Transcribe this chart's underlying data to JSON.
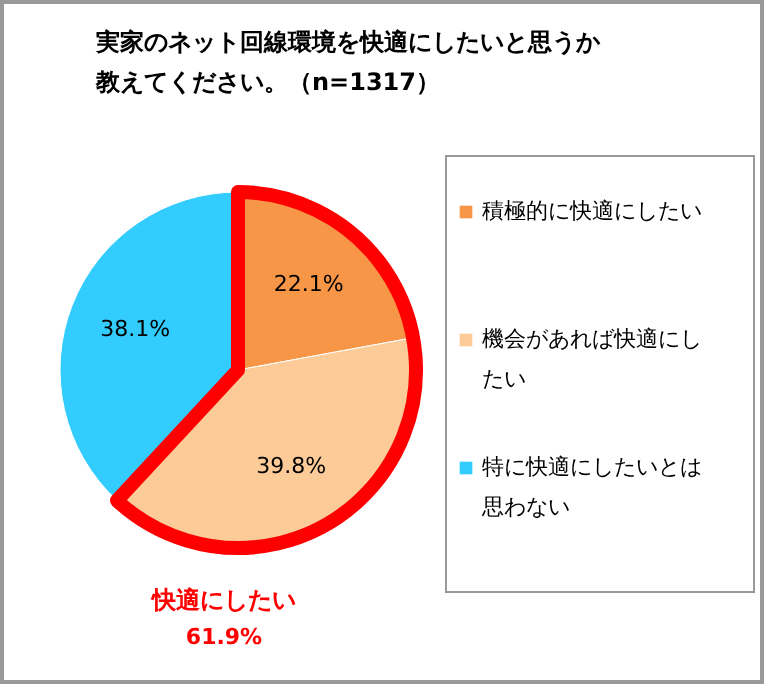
{
  "chart_data": {
    "type": "pie",
    "title": "実家のネット回線環境を快適にしたいと思うか教えてください。（n=1317）",
    "categories": [
      "積極的に快適にしたい",
      "機会があれば快適にしたい",
      "特に快適にしたいとは思わない"
    ],
    "values": [
      22.1,
      39.8,
      38.1
    ],
    "colors": [
      "#f79646",
      "#fccb98",
      "#33ccff"
    ],
    "value_labels": [
      "22.1%",
      "39.8%",
      "38.1%"
    ],
    "annotations": [
      "快適にしたい",
      "61.9%"
    ],
    "legend": "right"
  }
}
